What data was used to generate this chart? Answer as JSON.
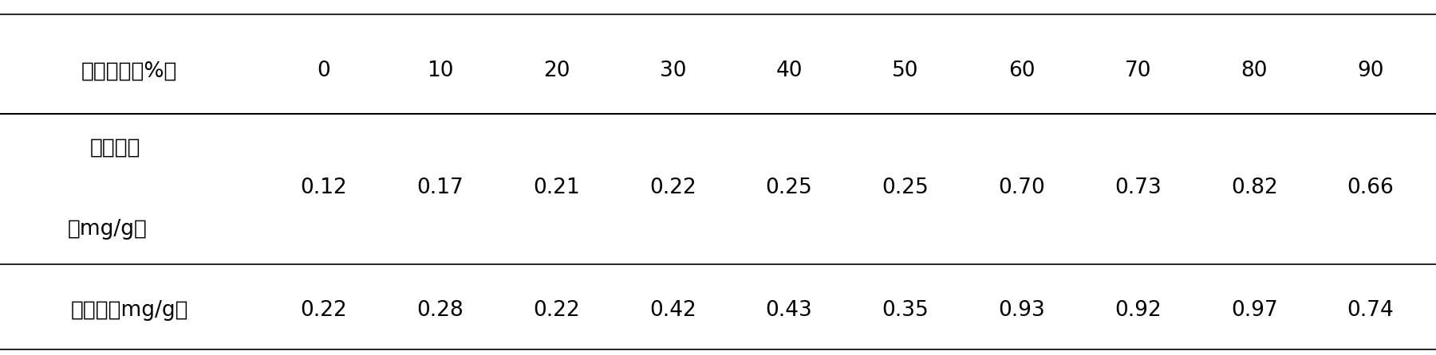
{
  "header_row": [
    "乙醇浓度（%）",
    "0",
    "10",
    "20",
    "30",
    "40",
    "50",
    "60",
    "70",
    "80",
    "90"
  ],
  "row1_label_line1": "游离蒥醒",
  "row1_label_line2": "（mg/g）",
  "row1_values": [
    "0.12",
    "0.17",
    "0.21",
    "0.22",
    "0.25",
    "0.25",
    "0.70",
    "0.73",
    "0.82",
    "0.66"
  ],
  "row2_label": "总蒥醒（mg/g）",
  "row2_values": [
    "0.22",
    "0.28",
    "0.22",
    "0.42",
    "0.43",
    "0.35",
    "0.93",
    "0.92",
    "0.97",
    "0.74"
  ],
  "bg_color": "#ffffff",
  "text_color": "#000000",
  "font_size": 19,
  "line_color": "#000000",
  "fig_width": 18.0,
  "fig_height": 4.46,
  "dpi": 100
}
